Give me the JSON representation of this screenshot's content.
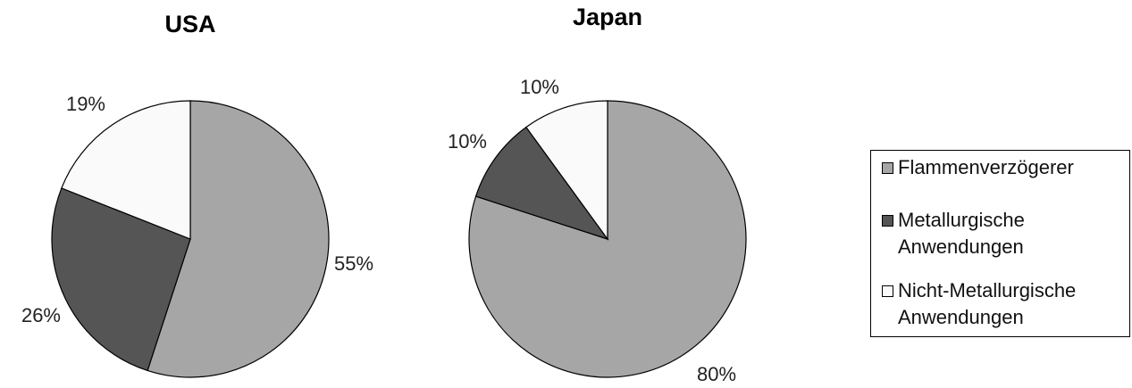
{
  "colors": {
    "flammenverzoegerer": "#a6a6a6",
    "metallurgische": "#555555",
    "nicht_metallurgische": "#fafafa",
    "outline": "#000000"
  },
  "chart_data": [
    {
      "type": "pie",
      "title": "USA",
      "categories": [
        "Flammenverzögerer",
        "Metallurgische Anwendungen",
        "Nicht-Metallurgische Anwendungen"
      ],
      "values": [
        55,
        26,
        19
      ],
      "labels": [
        "55%",
        "26%",
        "19%"
      ]
    },
    {
      "type": "pie",
      "title": "Japan",
      "categories": [
        "Flammenverzögerer",
        "Metallurgische Anwendungen",
        "Nicht-Metallurgische Anwendungen"
      ],
      "values": [
        80,
        10,
        10
      ],
      "labels": [
        "80%",
        "10%",
        "10%"
      ]
    }
  ],
  "legend": {
    "items": [
      {
        "label": "Flammenverzögerer",
        "color": "#a6a6a6"
      },
      {
        "label": "Metallurgische\nAnwendungen",
        "color": "#555555"
      },
      {
        "label": "Nicht-Metallurgische\nAnwendungen",
        "color": "#fafafa"
      }
    ]
  }
}
